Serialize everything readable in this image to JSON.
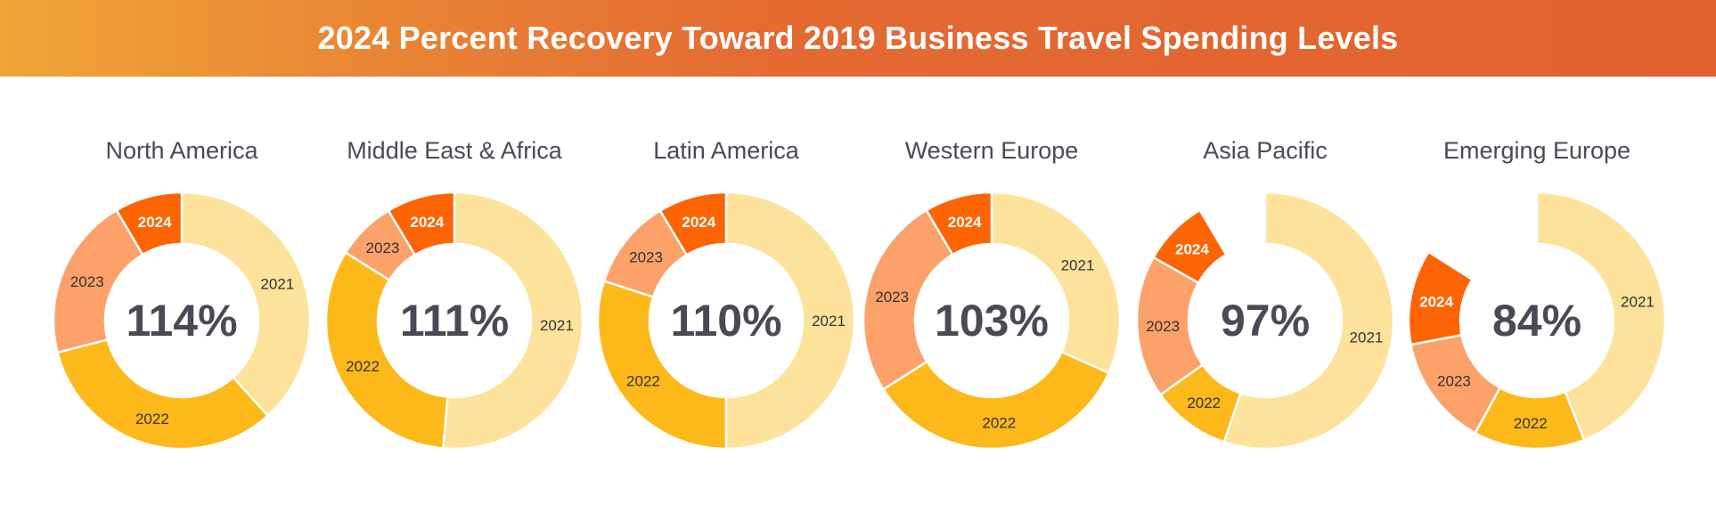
{
  "title": "2024 Percent Recovery Toward 2019 Business Travel Spending Levels",
  "colors": {
    "2021": "#fde29b",
    "2022": "#fdb81a",
    "2023": "#fca169",
    "2024": "#fc6404",
    "title_text": "#4a4a55",
    "banner_start": "#efa538",
    "banner_end": "#e2622f"
  },
  "chart_data": [
    {
      "type": "donut",
      "title": "North America",
      "center_label": "114%",
      "series": [
        {
          "name": "2021",
          "share": 0.383
        },
        {
          "name": "2022",
          "share": 0.327
        },
        {
          "name": "2023",
          "share": 0.205
        },
        {
          "name": "2024",
          "share": 0.085
        }
      ]
    },
    {
      "type": "donut",
      "title": "Middle East & Africa",
      "center_label": "111%",
      "series": [
        {
          "name": "2021",
          "share": 0.514
        },
        {
          "name": "2022",
          "share": 0.325
        },
        {
          "name": "2023",
          "share": 0.075
        },
        {
          "name": "2024",
          "share": 0.086
        }
      ]
    },
    {
      "type": "donut",
      "title": "Latin America",
      "center_label": "110%",
      "series": [
        {
          "name": "2021",
          "share": 0.5
        },
        {
          "name": "2022",
          "share": 0.3
        },
        {
          "name": "2023",
          "share": 0.114
        },
        {
          "name": "2024",
          "share": 0.086
        }
      ]
    },
    {
      "type": "donut",
      "title": "Western Europe",
      "center_label": "103%",
      "series": [
        {
          "name": "2021",
          "share": 0.317
        },
        {
          "name": "2022",
          "share": 0.343
        },
        {
          "name": "2023",
          "share": 0.255
        },
        {
          "name": "2024",
          "share": 0.085
        }
      ]
    },
    {
      "type": "donut",
      "title": "Asia Pacific",
      "center_label": "97%",
      "series": [
        {
          "name": "2021",
          "share": 0.552
        },
        {
          "name": "2022",
          "share": 0.1
        },
        {
          "name": "2023",
          "share": 0.18
        },
        {
          "name": "2024",
          "share": 0.083
        },
        {
          "name": "gap",
          "share": 0.085
        }
      ]
    },
    {
      "type": "donut",
      "title": "Emerging Europe",
      "center_label": "84%",
      "series": [
        {
          "name": "2021",
          "share": 0.44
        },
        {
          "name": "2022",
          "share": 0.14
        },
        {
          "name": "2023",
          "share": 0.14
        },
        {
          "name": "2024",
          "share": 0.12
        },
        {
          "name": "gap",
          "share": 0.16
        }
      ]
    }
  ]
}
